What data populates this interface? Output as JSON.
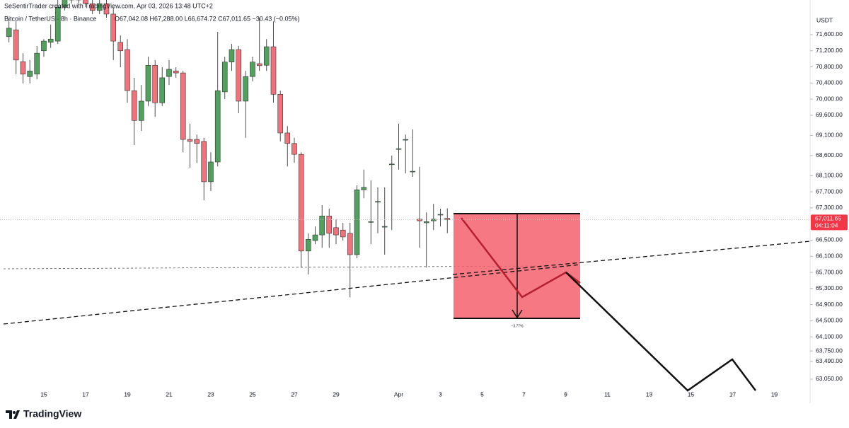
{
  "chart_data": {
    "type": "candlestick",
    "credit": "SeSentirTrader created with TradingView.com, Apr 03, 2026 13:48 UTC+2",
    "symbol": "Bitcoin / TetherUS · 8h · Binance",
    "ohlc_text": "O67,042.08 H67,288.00 L66,674.72 C67,011.65 −30.43 (−0.05%)",
    "currency": "USDT",
    "last_price": {
      "value": 67011.65,
      "label": "67,011.65"
    },
    "countdown": "04:11:04",
    "annotation": "−3.77%",
    "brand": "TradingView",
    "up_color": "#52a05e",
    "down_color": "#f0737b",
    "x": [
      -1.67,
      -1.33,
      -1,
      -0.67,
      -0.33,
      0,
      0.33,
      0.67,
      1,
      1.33,
      1.67,
      2,
      2.33,
      2.67,
      3,
      3.33,
      3.67,
      4,
      4.33,
      4.67,
      5,
      5.33,
      5.67,
      6,
      6.33,
      6.67,
      7,
      7.33,
      7.67,
      8,
      8.33,
      8.67,
      9,
      9.33,
      9.67,
      10,
      10.33,
      10.67,
      11,
      11.33,
      11.67,
      12,
      12.33,
      12.67,
      13,
      13.33,
      13.67,
      14,
      14.33,
      14.67,
      15,
      15.33,
      15.67,
      16,
      16.33,
      16.67,
      17,
      17.33,
      17.67,
      18,
      18.33,
      18.67,
      19,
      19.33
    ],
    "open": [
      71550,
      71720,
      70930,
      70560,
      70620,
      71200,
      71410,
      71440,
      72280,
      72810,
      72460,
      72720,
      72370,
      72200,
      72370,
      72110,
      71410,
      71230,
      70210,
      69470,
      69950,
      70840,
      69910,
      70560,
      70700,
      70650,
      69000,
      69000,
      68950,
      67950,
      68440,
      70180,
      70920,
      71230,
      69950,
      70560,
      70880,
      70840,
      71300,
      70120,
      69160,
      68900,
      68630,
      66230,
      66490,
      66630,
      67100,
      66810,
      66750,
      66670,
      66140,
      67750,
      66960,
      67460,
      66840,
      68390,
      68770,
      69000,
      68210,
      67020,
      66930,
      66980,
      67140,
      67042.08
    ],
    "high": [
      72020,
      71930,
      71140,
      70970,
      71320,
      71490,
      71850,
      72460,
      72990,
      72990,
      72990,
      72810,
      72460,
      72640,
      72460,
      72280,
      71580,
      71490,
      70530,
      70350,
      71050,
      70970,
      70790,
      70970,
      70790,
      70700,
      69390,
      69120,
      69040,
      68680,
      71670,
      71050,
      71370,
      71320,
      70700,
      71050,
      72020,
      71490,
      71930,
      70210,
      69330,
      69040,
      68680,
      66670,
      66840,
      67370,
      67280,
      67020,
      66930,
      66930,
      67860,
      68250,
      67980,
      67810,
      67810,
      68600,
      69390,
      69120,
      69250,
      68320,
      67190,
      67400,
      67280,
      67288
    ],
    "low": [
      71410,
      70620,
      70390,
      70390,
      70490,
      71050,
      71270,
      71370,
      72200,
      72370,
      72370,
      72280,
      72110,
      72110,
      72020,
      70970,
      70790,
      69910,
      68860,
      69210,
      69830,
      69560,
      69830,
      70350,
      70530,
      68680,
      68300,
      68420,
      67490,
      67720,
      68330,
      70000,
      70700,
      69650,
      69040,
      70440,
      70700,
      70700,
      69910,
      68950,
      68330,
      68420,
      65820,
      65650,
      66400,
      66310,
      66310,
      66400,
      66490,
      65080,
      66050,
      67540,
      66400,
      66670,
      66140,
      66750,
      68250,
      68160,
      68070,
      66310,
      65820,
      66750,
      66840,
      66674.72
    ],
    "close": [
      71760,
      70970,
      70620,
      70700,
      71140,
      71440,
      71490,
      72280,
      72810,
      72460,
      72720,
      72370,
      72200,
      72370,
      72110,
      71440,
      71200,
      70210,
      69470,
      69950,
      70840,
      69910,
      70530,
      70740,
      70650,
      69000,
      68950,
      68900,
      67950,
      68440,
      70210,
      70920,
      71230,
      69950,
      70560,
      70920,
      70830,
      71300,
      70120,
      69160,
      68900,
      68630,
      66230,
      66520,
      66630,
      67100,
      66670,
      66630,
      66580,
      66140,
      67750,
      67810,
      66960,
      67460,
      66840,
      68390,
      68770,
      69000,
      68210,
      66980,
      66960,
      67020,
      67140,
      67011.65
    ],
    "xlim": [
      -2.1,
      36.71
    ],
    "xticks": [
      {
        "value": 0,
        "label": "15"
      },
      {
        "value": 2,
        "label": "17"
      },
      {
        "value": 4,
        "label": "19"
      },
      {
        "value": 6,
        "label": "21"
      },
      {
        "value": 8,
        "label": "23"
      },
      {
        "value": 10,
        "label": "25"
      },
      {
        "value": 12,
        "label": "27"
      },
      {
        "value": 14,
        "label": "29"
      },
      {
        "value": 17,
        "label": "Apr"
      },
      {
        "value": 19,
        "label": "3"
      },
      {
        "value": 21,
        "label": "5"
      },
      {
        "value": 23,
        "label": "7"
      },
      {
        "value": 25,
        "label": "9"
      },
      {
        "value": 27,
        "label": "11"
      },
      {
        "value": 29,
        "label": "13"
      },
      {
        "value": 31,
        "label": "15"
      },
      {
        "value": 33,
        "label": "17"
      },
      {
        "value": 35,
        "label": "19"
      }
    ],
    "ylim": [
      62716,
      72460
    ],
    "yticks": [
      {
        "value": 71600,
        "label": "71,600.00"
      },
      {
        "value": 71200,
        "label": "71,200.00"
      },
      {
        "value": 70800,
        "label": "70,800.00"
      },
      {
        "value": 70400,
        "label": "70,400.00"
      },
      {
        "value": 70000,
        "label": "70,000.00"
      },
      {
        "value": 69600,
        "label": "69,600.00"
      },
      {
        "value": 69100,
        "label": "69,100.00"
      },
      {
        "value": 68600,
        "label": "68,600.00"
      },
      {
        "value": 68100,
        "label": "68,100.00"
      },
      {
        "value": 67700,
        "label": "67,700.00"
      },
      {
        "value": 67300,
        "label": "67,300.00"
      },
      {
        "value": 66500,
        "label": "66,500.00"
      },
      {
        "value": 66100,
        "label": "66,100.00"
      },
      {
        "value": 65700,
        "label": "65,700.00"
      },
      {
        "value": 65300,
        "label": "65,300.00"
      },
      {
        "value": 64900,
        "label": "64,900.00"
      },
      {
        "value": 64500,
        "label": "64,500.00"
      },
      {
        "value": 64100,
        "label": "64,100.00"
      },
      {
        "value": 63750,
        "label": "63,750.00"
      },
      {
        "value": 63490,
        "label": "63,490.00"
      },
      {
        "value": 63050,
        "label": "63,050.00"
      }
    ]
  }
}
